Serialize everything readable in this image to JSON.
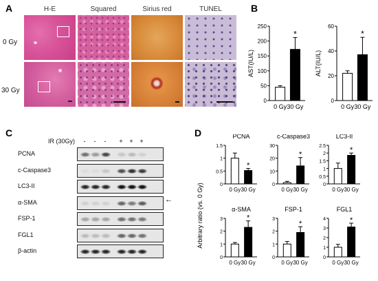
{
  "panels": {
    "A": {
      "letter": "A",
      "columns": [
        "H-E",
        "Squared",
        "Sirius red",
        "TUNEL"
      ],
      "rows": [
        "0 Gy",
        "30 Gy"
      ]
    },
    "B": {
      "letter": "B"
    },
    "C": {
      "letter": "C",
      "ir_label": "IR (30Gy)",
      "ir_signs": [
        "-",
        "-",
        "-",
        "+",
        "+",
        "+"
      ],
      "bands": [
        "PCNA",
        "c-Caspase3",
        "LC3-II",
        "α-SMA",
        "FSP-1",
        "FGL1",
        "β-actin"
      ]
    },
    "D": {
      "letter": "D",
      "shared_ylabel": "Arbitrary ratio (vs. 0 Gy)"
    }
  },
  "colors": {
    "he_pink": "#d8539a",
    "sirius_orange": "#d88a3a",
    "tunel_lilac": "#c4b8d6",
    "bar_filled": "#000000",
    "bar_open": "#ffffff"
  },
  "chart_data": [
    {
      "type": "bar",
      "panel": "B",
      "categories": [
        "0 Gy",
        "30 Gy"
      ],
      "values": [
        45,
        172
      ],
      "errors": [
        5,
        40
      ],
      "ylabel": "AST(IU/L)",
      "ylim": [
        0,
        250
      ],
      "yticks": [
        0,
        50,
        100,
        150,
        200,
        250
      ],
      "significance": [
        "",
        "*"
      ],
      "grid": false
    },
    {
      "type": "bar",
      "panel": "B",
      "categories": [
        "0 Gy",
        "30 Gy"
      ],
      "values": [
        22,
        37
      ],
      "errors": [
        2,
        14
      ],
      "ylabel": "ALT(IU/L)",
      "ylim": [
        0,
        60
      ],
      "yticks": [
        0,
        20,
        40,
        60
      ],
      "significance": [
        "",
        "*"
      ],
      "grid": false
    },
    {
      "type": "bar",
      "panel": "D",
      "title": "PCNA",
      "categories": [
        "0 Gy",
        "30 Gy"
      ],
      "values": [
        1.0,
        0.52
      ],
      "errors": [
        0.2,
        0.08
      ],
      "ylim": [
        0,
        1.5
      ],
      "yticks": [
        0.0,
        0.5,
        1.0,
        1.5
      ],
      "significance": [
        "",
        "*"
      ],
      "grid": false
    },
    {
      "type": "bar",
      "panel": "D",
      "title": "c-Caspase3",
      "categories": [
        "0 Gy",
        "30 Gy"
      ],
      "values": [
        1.0,
        14.0
      ],
      "errors": [
        1.0,
        6.5
      ],
      "ylim": [
        0,
        30
      ],
      "yticks": [
        0,
        10,
        20,
        30
      ],
      "significance": [
        "",
        "*"
      ],
      "grid": false
    },
    {
      "type": "bar",
      "panel": "D",
      "title": "LC3-II",
      "categories": [
        "0 Gy",
        "30 Gy"
      ],
      "values": [
        1.0,
        1.85
      ],
      "errors": [
        0.35,
        0.15
      ],
      "ylim": [
        0,
        2.5
      ],
      "yticks": [
        0.0,
        0.5,
        1.0,
        1.5,
        2.0,
        2.5
      ],
      "significance": [
        "",
        "*"
      ],
      "grid": false
    },
    {
      "type": "bar",
      "panel": "D",
      "title": "α-SMA",
      "categories": [
        "0 Gy",
        "30 Gy"
      ],
      "values": [
        1.0,
        2.3
      ],
      "errors": [
        0.12,
        0.5
      ],
      "ylim": [
        0,
        3
      ],
      "yticks": [
        0,
        1,
        2,
        3
      ],
      "significance": [
        "",
        "*"
      ],
      "grid": false
    },
    {
      "type": "bar",
      "panel": "D",
      "title": "FSP-1",
      "categories": [
        "0 Gy",
        "30 Gy"
      ],
      "values": [
        1.0,
        1.9
      ],
      "errors": [
        0.2,
        0.45
      ],
      "ylim": [
        0,
        3
      ],
      "yticks": [
        0,
        1,
        2,
        3
      ],
      "significance": [
        "",
        "*"
      ],
      "grid": false
    },
    {
      "type": "bar",
      "panel": "D",
      "title": "FGL1",
      "categories": [
        "0 Gy",
        "30 Gy"
      ],
      "values": [
        1.0,
        3.1
      ],
      "errors": [
        0.3,
        0.4
      ],
      "ylim": [
        0,
        4
      ],
      "yticks": [
        0,
        1,
        2,
        3,
        4
      ],
      "significance": [
        "",
        "*"
      ],
      "grid": false
    }
  ]
}
